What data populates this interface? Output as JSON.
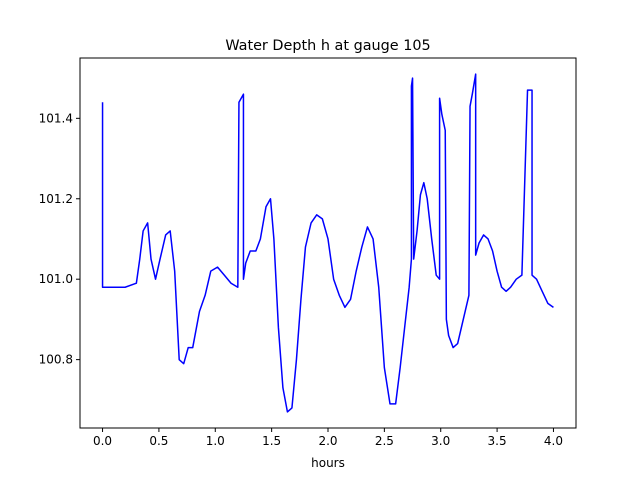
{
  "chart_data": {
    "type": "line",
    "title": "Water Depth h at gauge 105",
    "xlabel": "hours",
    "ylabel": "",
    "xlim": [
      -0.2,
      4.2
    ],
    "ylim": [
      100.63,
      101.55
    ],
    "xticks": [
      0.0,
      0.5,
      1.0,
      1.5,
      2.0,
      2.5,
      3.0,
      3.5,
      4.0
    ],
    "xtick_labels": [
      "0.0",
      "0.5",
      "1.0",
      "1.5",
      "2.0",
      "2.5",
      "3.0",
      "3.5",
      "4.0"
    ],
    "yticks": [
      100.8,
      101.0,
      101.2,
      101.4
    ],
    "ytick_labels": [
      "100.8",
      "101.0",
      "101.2",
      "101.4"
    ],
    "grid": false,
    "color": "#0000ff",
    "series": [
      {
        "name": "",
        "x": [
          0.0,
          0.0,
          0.05,
          0.2,
          0.3,
          0.33,
          0.36,
          0.4,
          0.43,
          0.47,
          0.51,
          0.56,
          0.6,
          0.64,
          0.68,
          0.72,
          0.76,
          0.8,
          0.86,
          0.91,
          0.96,
          1.02,
          1.08,
          1.14,
          1.2,
          1.21,
          1.21,
          1.23,
          1.25,
          1.25,
          1.27,
          1.31,
          1.36,
          1.4,
          1.45,
          1.49,
          1.52,
          1.56,
          1.6,
          1.64,
          1.68,
          1.72,
          1.76,
          1.8,
          1.85,
          1.9,
          1.95,
          2.0,
          2.05,
          2.1,
          2.15,
          2.2,
          2.25,
          2.3,
          2.35,
          2.4,
          2.45,
          2.5,
          2.55,
          2.6,
          2.64,
          2.68,
          2.72,
          2.74,
          2.74,
          2.75,
          2.76,
          2.79,
          2.82,
          2.85,
          2.88,
          2.92,
          2.96,
          2.99,
          2.99,
          3.01,
          3.04,
          3.05,
          3.07,
          3.11,
          3.15,
          3.2,
          3.25,
          3.26,
          3.26,
          3.28,
          3.31,
          3.31,
          3.34,
          3.38,
          3.42,
          3.46,
          3.5,
          3.54,
          3.58,
          3.62,
          3.67,
          3.72,
          3.77,
          3.77,
          3.79,
          3.81,
          3.81,
          3.85,
          3.9,
          3.95,
          4.0
        ],
        "y": [
          101.44,
          100.98,
          100.98,
          100.98,
          100.99,
          101.05,
          101.12,
          101.14,
          101.05,
          101.0,
          101.05,
          101.11,
          101.12,
          101.02,
          100.8,
          100.79,
          100.83,
          100.83,
          100.92,
          100.96,
          101.02,
          101.03,
          101.01,
          100.99,
          100.98,
          101.44,
          101.44,
          101.45,
          101.46,
          101.0,
          101.04,
          101.07,
          101.07,
          101.1,
          101.18,
          101.2,
          101.1,
          100.88,
          100.73,
          100.67,
          100.68,
          100.8,
          100.95,
          101.08,
          101.14,
          101.16,
          101.15,
          101.1,
          101.0,
          100.96,
          100.93,
          100.95,
          101.02,
          101.08,
          101.13,
          101.1,
          100.98,
          100.78,
          100.69,
          100.69,
          100.78,
          100.88,
          100.98,
          101.05,
          101.48,
          101.5,
          101.05,
          101.12,
          101.21,
          101.24,
          101.2,
          101.1,
          101.01,
          101.0,
          101.45,
          101.41,
          101.37,
          100.9,
          100.86,
          100.83,
          100.84,
          100.9,
          100.96,
          101.43,
          101.43,
          101.46,
          101.51,
          101.06,
          101.09,
          101.11,
          101.1,
          101.07,
          101.02,
          100.98,
          100.97,
          100.98,
          101.0,
          101.01,
          101.47,
          101.47,
          101.47,
          101.47,
          101.01,
          101.0,
          100.97,
          100.94,
          100.93
        ]
      }
    ]
  }
}
